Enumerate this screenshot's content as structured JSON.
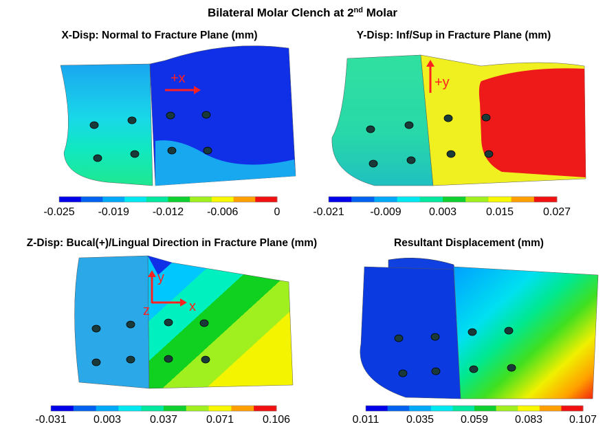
{
  "title": {
    "main": "Bilateral Molar Clench at 2",
    "sup": "nd",
    "rest": " Molar"
  },
  "panels": [
    {
      "title": "X-Disp: Normal to Fracture Plane (mm)",
      "scale": [
        "-0.025",
        "-0.019",
        "-0.012",
        "-0.006",
        "0"
      ],
      "axes": [
        "+x"
      ]
    },
    {
      "title": "Y-Disp: Inf/Sup in Fracture Plane (mm)",
      "scale": [
        "-0.021",
        "-0.009",
        "0.003",
        "0.015",
        "0.027"
      ],
      "axes": [
        "+y"
      ]
    },
    {
      "title": "Z-Disp: Bucal(+)/Lingual  Direction in Fracture Plane (mm)",
      "scale": [
        "-0.031",
        "0.003",
        "0.037",
        "0.071",
        "0.106"
      ],
      "axes": [
        "y",
        "x",
        "z"
      ]
    },
    {
      "title": "Resultant Displacement (mm)",
      "scale": [
        "0.011",
        "0.035",
        "0.059",
        "0.083",
        "0.107"
      ],
      "axes": []
    }
  ]
}
